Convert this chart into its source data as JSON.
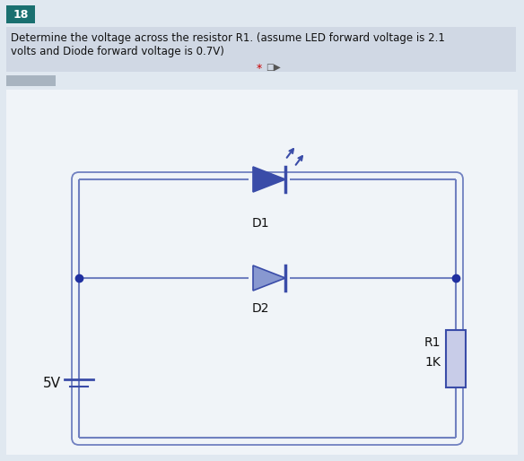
{
  "bg_color": "#e0e8f0",
  "circuit_color": "#3a4ca8",
  "circuit_color_light": "#7080c0",
  "question_number": "18",
  "question_num_bg": "#1a7070",
  "question_num_color": "#ffffff",
  "question_text": "Determine the voltage across the resistor R1. (assume LED forward voltage is 2.1\nvolts and Diode forward voltage is 0.7V)",
  "question_text_bg": "#d0d8e4",
  "star_color": "#cc0000",
  "circuit_bg": "#f0f4f8",
  "label_D1": "D1",
  "label_D2": "D2",
  "label_R1": "R1",
  "label_1K": "1K",
  "label_5V": "5V",
  "node_color": "#2030a0",
  "resistor_fill": "#c8cce8",
  "led_color": "#2030a0",
  "d2_fill": "#8898d0",
  "answer_box_color": "#a8b4c0",
  "lw_main": 1.5,
  "lw_border": 1.2
}
